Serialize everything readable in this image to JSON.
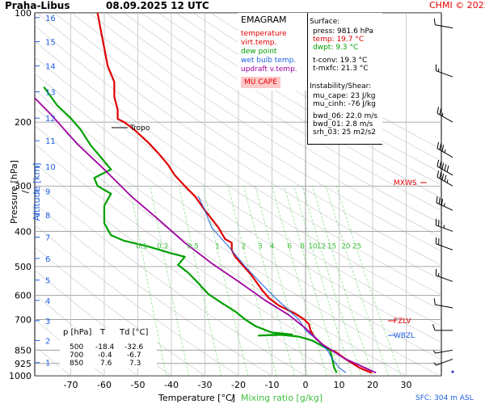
{
  "header": {
    "station": "Praha-Libus",
    "datetime": "08.09.2025 12 UTC",
    "copyright": "CHMI © 2025"
  },
  "legend": {
    "title": "EMAGRAM",
    "items": [
      {
        "label": "temperature",
        "color": "#e00000"
      },
      {
        "label": "virt.temp.",
        "color": "#e00000"
      },
      {
        "label": "dew point",
        "color": "#00a000"
      },
      {
        "label": "wet bulb temp.",
        "color": "#2060e0"
      },
      {
        "label": "updraft v.temp.",
        "color": "#a000a0"
      }
    ],
    "cape_label": "MU CAPE"
  },
  "stats": {
    "surface_title": "Surface:",
    "press": "press: 981.6 hPa",
    "temp": "temp: 19.7 °C",
    "dwpt": "dwpt: 9.3 °C",
    "tconv": "t-conv: 19.3 °C",
    "tmxfc": "t-mxfc: 21.3 °C",
    "instability_title": "Instability/Shear:",
    "mu_cape": "mu_cape: 23 J/kg",
    "mu_cinh": "mu_cinh: -76 J/kg",
    "bwd_06": "bwd_06: 22.0 m/s",
    "bwd_01": "bwd_01: 2.8 m/s",
    "srh_03": "srh_03: 25 m2/s2"
  },
  "table": {
    "headers": [
      "p [hPa]",
      "T",
      "Td [°C]"
    ],
    "rows": [
      [
        "500",
        "-18.4",
        "-32.6"
      ],
      [
        "700",
        "-0.4",
        "-6.7"
      ],
      [
        "850",
        "7.6",
        "7.3"
      ]
    ]
  },
  "annotations": {
    "tropo": "Tropo",
    "mxws": "MXWS",
    "fzlv": "FZLV",
    "wbzl": "WBZL",
    "sfc": "SFC: 304 m ASL"
  },
  "axes": {
    "ylabel_pressure": "Pressure [hPa]",
    "ylabel_sep": "/",
    "ylabel_altitude": "Altitude [km]",
    "xlabel_temp": "Temperature [°C]",
    "xlabel_sep": "/",
    "xlabel_mix": "Mixing ratio [g/kg]"
  },
  "chart_data": {
    "type": "line",
    "title": "EMAGRAM",
    "xlabel": "Temperature [°C]",
    "ylabel": "Pressure [hPa]",
    "xlim": [
      -80,
      40
    ],
    "ylim": [
      1000,
      100
    ],
    "y_scale": "log",
    "x_ticks": [
      -70,
      -60,
      -50,
      -40,
      -30,
      -20,
      -10,
      0,
      10,
      20,
      30
    ],
    "y_ticks": [
      100,
      200,
      300,
      400,
      500,
      600,
      700,
      850,
      925,
      1000
    ],
    "altitude_ticks_km": [
      1,
      2,
      3,
      4,
      5,
      6,
      7,
      8,
      9,
      10,
      11,
      12,
      13,
      14,
      15,
      16
    ],
    "altitude_ticks_pressure": [
      920,
      800,
      705,
      620,
      545,
      475,
      415,
      360,
      310,
      265,
      225,
      195,
      165,
      140,
      120,
      103
    ],
    "mixing_ratio_labels": [
      "0.1",
      "0.2",
      "0.5",
      "1",
      "2",
      "3",
      "4",
      "6",
      "8",
      "10",
      "12",
      "15",
      "20",
      "25"
    ],
    "mixing_ratio_values": [
      0.1,
      0.2,
      0.5,
      1,
      2,
      3,
      4,
      6,
      8,
      10,
      12,
      15,
      20,
      25
    ],
    "mixing_ratio_label_pressure": 450,
    "grid": true,
    "legend_position": "top-right",
    "series": [
      {
        "name": "temperature",
        "color": "#e00000",
        "points": [
          [
            19.7,
            981
          ],
          [
            16,
            950
          ],
          [
            12,
            900
          ],
          [
            9,
            860
          ],
          [
            7.6,
            850
          ],
          [
            5,
            820
          ],
          [
            2.5,
            780
          ],
          [
            1.5,
            750
          ],
          [
            1,
            720
          ],
          [
            -0.4,
            700
          ],
          [
            -3,
            675
          ],
          [
            -8,
            640
          ],
          [
            -11,
            610
          ],
          [
            -13,
            580
          ],
          [
            -16,
            530
          ],
          [
            -18.4,
            500
          ],
          [
            -21,
            470
          ],
          [
            -22,
            450
          ],
          [
            -22,
            440
          ],
          [
            -22,
            430
          ],
          [
            -24,
            420
          ],
          [
            -26,
            390
          ],
          [
            -30,
            350
          ],
          [
            -33,
            320
          ],
          [
            -36,
            300
          ],
          [
            -39,
            280
          ],
          [
            -41,
            262
          ],
          [
            -44,
            243
          ],
          [
            -47,
            227
          ],
          [
            -51,
            210
          ],
          [
            -54,
            200
          ],
          [
            -56,
            196
          ],
          [
            -56,
            185
          ],
          [
            -57,
            170
          ],
          [
            -57,
            155
          ],
          [
            -59,
            140
          ],
          [
            -60,
            125
          ],
          [
            -61,
            112
          ],
          [
            -62,
            100
          ]
        ]
      },
      {
        "name": "dew point",
        "color": "#00a000",
        "points": [
          [
            9.3,
            981
          ],
          [
            8.5,
            950
          ],
          [
            8,
            900
          ],
          [
            7.3,
            850
          ],
          [
            2,
            800
          ],
          [
            -2,
            780
          ],
          [
            -8,
            770
          ],
          [
            -14,
            775
          ],
          [
            -4,
            770
          ],
          [
            -10,
            760
          ],
          [
            -15,
            730
          ],
          [
            -18,
            700
          ],
          [
            -21,
            665
          ],
          [
            -25,
            630
          ],
          [
            -29,
            595
          ],
          [
            -32,
            555
          ],
          [
            -35,
            520
          ],
          [
            -38,
            495
          ],
          [
            -36,
            470
          ],
          [
            -40,
            460
          ],
          [
            -47,
            440
          ],
          [
            -54,
            425
          ],
          [
            -58,
            410
          ],
          [
            -60,
            380
          ],
          [
            -60,
            340
          ],
          [
            -58,
            315
          ],
          [
            -62,
            300
          ],
          [
            -63,
            285
          ],
          [
            -58,
            270
          ],
          [
            -61,
            250
          ],
          [
            -64,
            232
          ],
          [
            -67,
            210
          ],
          [
            -70,
            195
          ],
          [
            -74,
            180
          ],
          [
            -78,
            160
          ]
        ]
      },
      {
        "name": "wet bulb temp.",
        "color": "#2060e0",
        "points": [
          [
            12,
            981
          ],
          [
            10,
            950
          ],
          [
            8,
            900
          ],
          [
            6.5,
            850
          ],
          [
            3,
            790
          ],
          [
            0,
            750
          ],
          [
            -2,
            700
          ],
          [
            -5,
            660
          ],
          [
            -9,
            610
          ],
          [
            -13,
            560
          ],
          [
            -18,
            500
          ],
          [
            -23,
            440
          ],
          [
            -26,
            410
          ],
          [
            -28,
            390
          ],
          [
            -30,
            350
          ],
          [
            -32,
            320
          ]
        ]
      },
      {
        "name": "updraft v.temp.",
        "color": "#a000a0",
        "points": [
          [
            21,
            981
          ],
          [
            12,
            900
          ],
          [
            5,
            820
          ],
          [
            0,
            740
          ],
          [
            -5,
            680
          ],
          [
            -12,
            620
          ],
          [
            -20,
            550
          ],
          [
            -28,
            490
          ],
          [
            -36,
            430
          ],
          [
            -44,
            370
          ],
          [
            -52,
            320
          ],
          [
            -60,
            270
          ],
          [
            -68,
            230
          ],
          [
            -76,
            190
          ],
          [
            -84,
            160
          ]
        ]
      }
    ],
    "wind_barbs": [
      {
        "pressure": 975,
        "dir": 180,
        "speed": 0
      },
      {
        "pressure": 900,
        "dir": 250,
        "speed": 5
      },
      {
        "pressure": 850,
        "dir": 260,
        "speed": 5
      },
      {
        "pressure": 750,
        "dir": 270,
        "speed": 10
      },
      {
        "pressure": 650,
        "dir": 280,
        "speed": 10
      },
      {
        "pressure": 550,
        "dir": 290,
        "speed": 15
      },
      {
        "pressure": 450,
        "dir": 290,
        "speed": 25
      },
      {
        "pressure": 400,
        "dir": 290,
        "speed": 35
      },
      {
        "pressure": 350,
        "dir": 295,
        "speed": 35
      },
      {
        "pressure": 300,
        "dir": 300,
        "speed": 45
      },
      {
        "pressure": 280,
        "dir": 300,
        "speed": 50
      },
      {
        "pressure": 250,
        "dir": 300,
        "speed": 35
      },
      {
        "pressure": 200,
        "dir": 300,
        "speed": 25
      },
      {
        "pressure": 150,
        "dir": 290,
        "speed": 15
      },
      {
        "pressure": 110,
        "dir": 280,
        "speed": 10
      }
    ]
  }
}
